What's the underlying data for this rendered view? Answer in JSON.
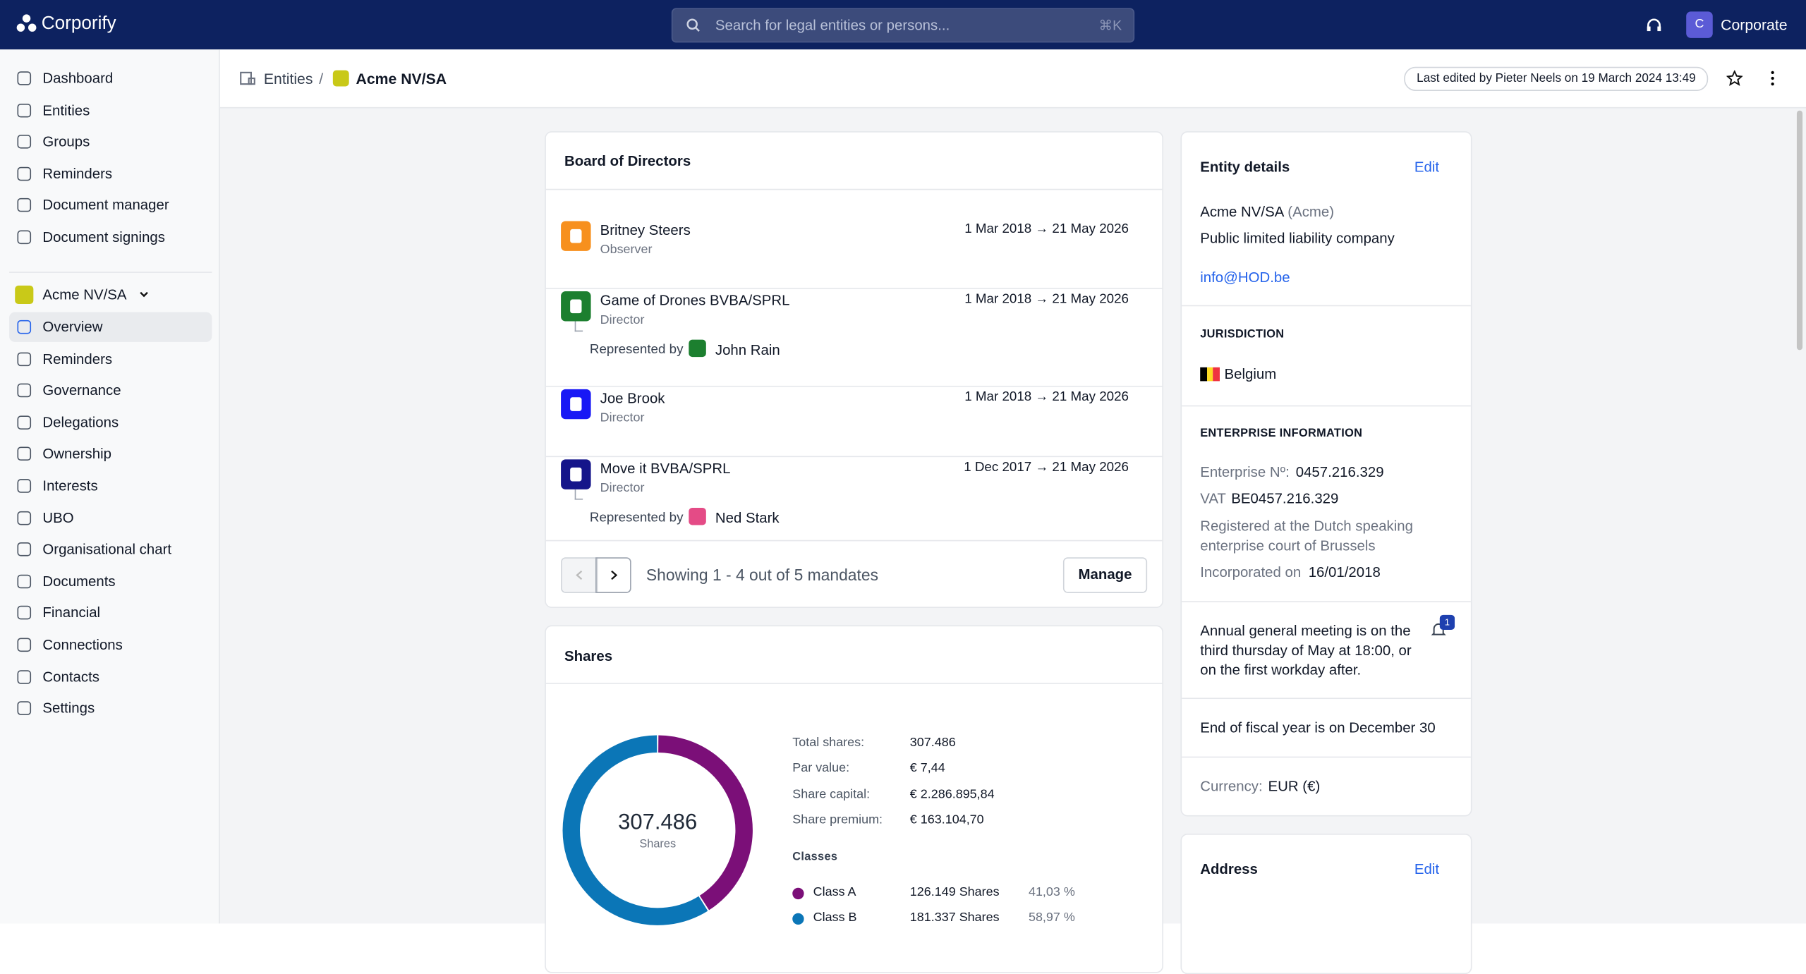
{
  "header": {
    "brand": "Corporify",
    "search_placeholder": "Search for legal entities or persons...",
    "shortcut": "⌘K",
    "user_initial": "C",
    "user_name": "Corporate"
  },
  "sidebar": {
    "main_nav": [
      "Dashboard",
      "Entities",
      "Groups",
      "Reminders",
      "Document manager",
      "Document signings"
    ],
    "entity": "Acme NV/SA",
    "entity_nav": [
      "Overview",
      "Reminders",
      "Governance",
      "Delegations",
      "Ownership",
      "Interests",
      "UBO",
      "Organisational chart",
      "Documents",
      "Financial",
      "Connections",
      "Contacts",
      "Settings"
    ]
  },
  "breadcrumb": {
    "items": [
      "Entities",
      "Acme NV/SA"
    ],
    "last_edited": "Last edited by Pieter Neels on 19 March 2024 13:49"
  },
  "board": {
    "title": "Board of Directors",
    "mandates": [
      {
        "name": "Britney Steers",
        "role": "Observer",
        "period": "1 Mar 2018 → 21 May 2026"
      },
      {
        "name": "Game of Drones BVBA/SPRL",
        "role": "Director",
        "period": "1 Mar 2018 → 21 May 2026",
        "represented_label": "Represented by",
        "representative": "John Rain"
      },
      {
        "name": "Joe Brook",
        "role": "Director",
        "period": "1 Mar 2018 → 21 May 2026"
      },
      {
        "name": "Move it BVBA/SPRL",
        "role": "Director",
        "period": "1 Dec 2017 → 21 May 2026",
        "represented_label": "Represented by",
        "representative": "Ned Stark"
      }
    ],
    "pagination": "Showing 1 - 4 out of 5 mandates",
    "manage": "Manage"
  },
  "shares": {
    "title": "Shares",
    "center_value": "307.486",
    "center_label": "Shares",
    "facts": [
      {
        "label": "Total shares:",
        "value": "307.486"
      },
      {
        "label": "Par value:",
        "value": "€ 7,44"
      },
      {
        "label": "Share capital:",
        "value": "€ 2.286.895,84"
      },
      {
        "label": "Share premium:",
        "value": "€ 163.104,70"
      }
    ],
    "classes_title": "Classes",
    "classes": [
      {
        "name": "Class A",
        "shares": "126.149 Shares",
        "color": "#7b0f78"
      },
      {
        "name": "Class B",
        "shares": "181.337 Shares",
        "color": "#0b76b7"
      }
    ],
    "values": [
      41.03,
      58.97
    ],
    "value_labels": [
      "41,03 %",
      "58,97 %"
    ]
  },
  "details": {
    "title": "Entity details",
    "edit": "Edit",
    "name": "Acme NV/SA",
    "alias": "(Acme)",
    "form": "Public limited liability company",
    "email": "info@HOD.be",
    "jurisdiction_title": "JURISDICTION",
    "country": "Belgium",
    "enterprise_title": "ENTERPRISE INFORMATION",
    "enterprise_no_label": "Enterprise Nº:",
    "enterprise_no": "0457.216.329",
    "vat_label": "VAT",
    "vat": "BE0457.216.329",
    "registered": "Registered at the Dutch speaking enterprise court of Brussels",
    "incorporated_label": "Incorporated on",
    "incorporated": "16/01/2018",
    "agm": "Annual general meeting is on the third thursday of May at 18:00, or on the first workday after.",
    "agm_badge": "1",
    "fiscal": "End of fiscal year is on December 30",
    "currency_label": "Currency:",
    "currency": "EUR (€)"
  },
  "address": {
    "title": "Address",
    "edit": "Edit"
  }
}
